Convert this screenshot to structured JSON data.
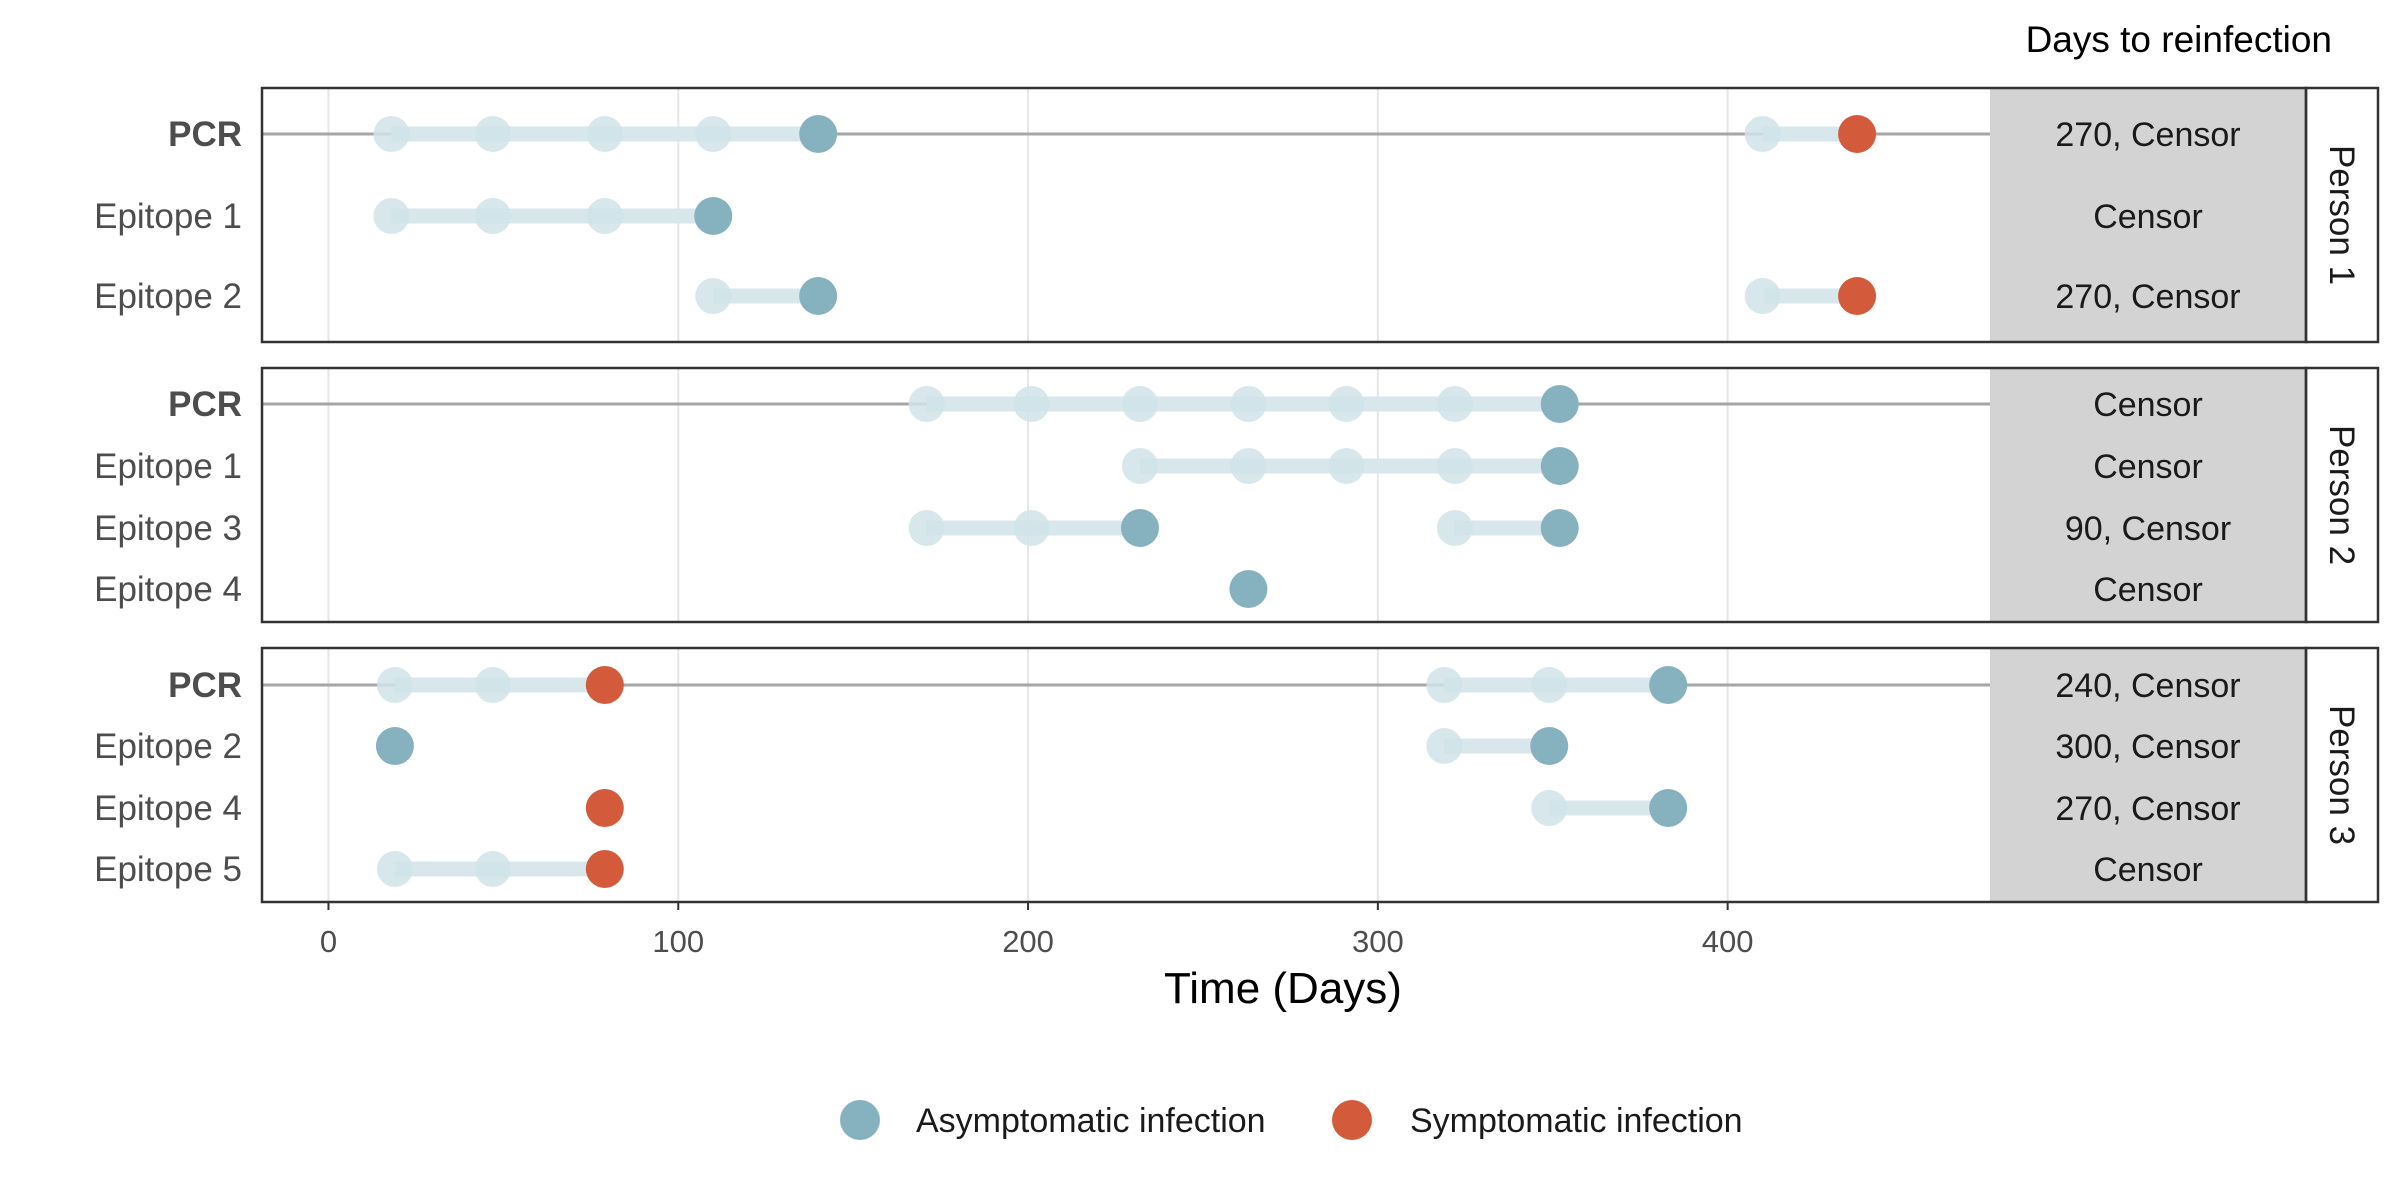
{
  "chart_data": {
    "type": "scatter",
    "xlabel": "Time (Days)",
    "xlim": [
      -19,
      475
    ],
    "x_ticks": [
      0,
      100,
      200,
      300,
      400
    ],
    "x_tick_labels": [
      "0",
      "100",
      "200",
      "300",
      "400"
    ],
    "grid": true,
    "table_title": "Days to reinfection",
    "legend_position": "bottom",
    "colors": {
      "asymptomatic": "#86b2c0",
      "symptomatic": "#d35b3b",
      "faded_point": "#d0e3e9",
      "faded_line": "#d8e7ec",
      "pcr_line": "#a6a6a6",
      "table_bg": "#d3d3d3",
      "grid": "#e6e6e6"
    },
    "legend": [
      {
        "key": "asymptomatic",
        "label": "Asymptomatic infection"
      },
      {
        "key": "symptomatic",
        "label": "Symptomatic infection"
      }
    ],
    "panels": [
      {
        "strip": "Person 1",
        "rows": [
          {
            "label": "PCR",
            "bold": true,
            "pcr": true,
            "table": "270, Censor",
            "episodes": [
              {
                "faded": [
                  18,
                  47,
                  79,
                  110
                ],
                "event": 140,
                "kind": "asymptomatic"
              },
              {
                "faded": [
                  410
                ],
                "event": 437,
                "kind": "symptomatic"
              }
            ]
          },
          {
            "label": "Epitope  1",
            "bold": false,
            "pcr": false,
            "table": "Censor",
            "episodes": [
              {
                "faded": [
                  18,
                  47,
                  79
                ],
                "event": 110,
                "kind": "asymptomatic"
              }
            ]
          },
          {
            "label": "Epitope  2",
            "bold": false,
            "pcr": false,
            "table": "270, Censor",
            "episodes": [
              {
                "faded": [
                  110
                ],
                "event": 140,
                "kind": "asymptomatic"
              },
              {
                "faded": [
                  410
                ],
                "event": 437,
                "kind": "symptomatic"
              }
            ]
          }
        ]
      },
      {
        "strip": "Person 2",
        "rows": [
          {
            "label": "PCR",
            "bold": true,
            "pcr": true,
            "table": "Censor",
            "episodes": [
              {
                "faded": [
                  171,
                  201,
                  232,
                  263,
                  291,
                  322
                ],
                "event": 352,
                "kind": "asymptomatic"
              }
            ]
          },
          {
            "label": "Epitope  1",
            "bold": false,
            "pcr": false,
            "table": "Censor",
            "episodes": [
              {
                "faded": [
                  232,
                  263,
                  291,
                  322
                ],
                "event": 352,
                "kind": "asymptomatic"
              }
            ]
          },
          {
            "label": "Epitope  3",
            "bold": false,
            "pcr": false,
            "table": "90, Censor",
            "episodes": [
              {
                "faded": [
                  171,
                  201
                ],
                "event": 232,
                "kind": "asymptomatic"
              },
              {
                "faded": [
                  322
                ],
                "event": 352,
                "kind": "asymptomatic"
              }
            ]
          },
          {
            "label": "Epitope  4",
            "bold": false,
            "pcr": false,
            "table": "Censor",
            "episodes": [
              {
                "faded": [],
                "event": 263,
                "kind": "asymptomatic"
              }
            ]
          }
        ]
      },
      {
        "strip": "Person 3",
        "rows": [
          {
            "label": "PCR",
            "bold": true,
            "pcr": true,
            "table": "240, Censor",
            "episodes": [
              {
                "faded": [
                  19,
                  47
                ],
                "event": 79,
                "kind": "symptomatic"
              },
              {
                "faded": [
                  319,
                  349
                ],
                "event": 383,
                "kind": "asymptomatic"
              }
            ]
          },
          {
            "label": "Epitope  2",
            "bold": false,
            "pcr": false,
            "table": "300, Censor",
            "episodes": [
              {
                "faded": [],
                "event": 19,
                "kind": "asymptomatic"
              },
              {
                "faded": [
                  319
                ],
                "event": 349,
                "kind": "asymptomatic"
              }
            ]
          },
          {
            "label": "Epitope  4",
            "bold": false,
            "pcr": false,
            "table": "270, Censor",
            "episodes": [
              {
                "faded": [],
                "event": 79,
                "kind": "symptomatic"
              },
              {
                "faded": [
                  349
                ],
                "event": 383,
                "kind": "asymptomatic"
              }
            ]
          },
          {
            "label": "Epitope  5",
            "bold": false,
            "pcr": false,
            "table": "Censor",
            "episodes": [
              {
                "faded": [
                  19,
                  47
                ],
                "event": 79,
                "kind": "symptomatic"
              }
            ]
          }
        ]
      }
    ]
  }
}
